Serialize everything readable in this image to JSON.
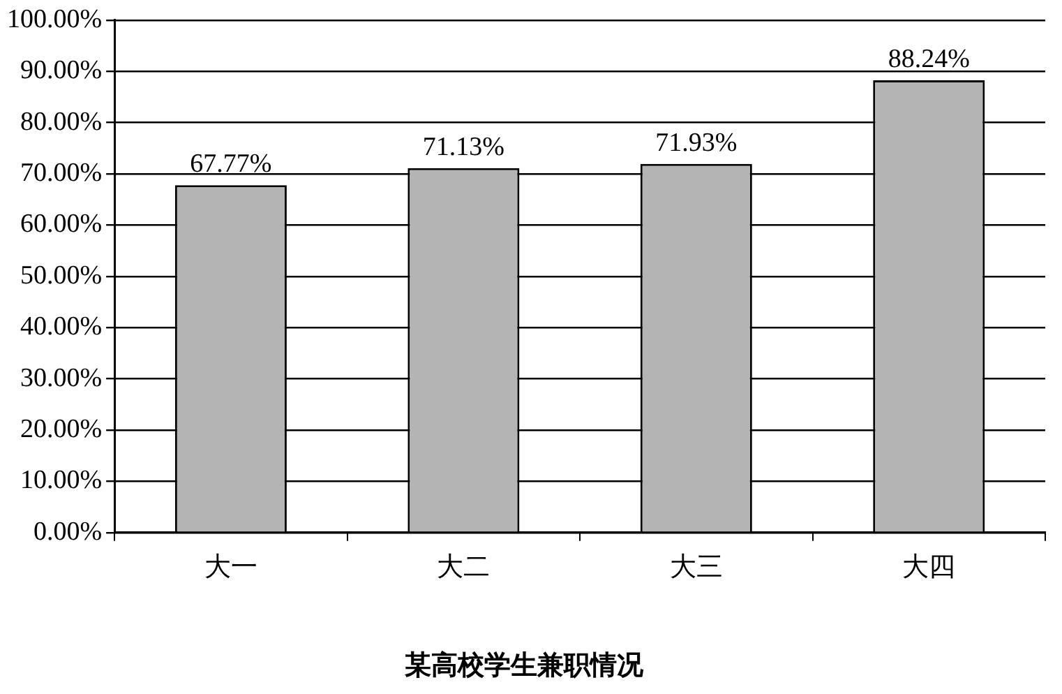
{
  "chart_data": {
    "type": "bar",
    "title": "某高校学生兼职情况",
    "categories": [
      "大一",
      "大二",
      "大三",
      "大四"
    ],
    "values": [
      67.77,
      71.13,
      71.93,
      88.24
    ],
    "value_labels": [
      "67.77%",
      "71.13%",
      "71.93%",
      "88.24%"
    ],
    "color": "#b4b4b4",
    "ylim": [
      0,
      100
    ],
    "yticks": [
      {
        "value": 0,
        "label": "0.00%"
      },
      {
        "value": 10,
        "label": "10.00%"
      },
      {
        "value": 20,
        "label": "20.00%"
      },
      {
        "value": 30,
        "label": "30.00%"
      },
      {
        "value": 40,
        "label": "40.00%"
      },
      {
        "value": 50,
        "label": "50.00%"
      },
      {
        "value": 60,
        "label": "60.00%"
      },
      {
        "value": 70,
        "label": "70.00%"
      },
      {
        "value": 80,
        "label": "80.00%"
      },
      {
        "value": 90,
        "label": "90.00%"
      },
      {
        "value": 100,
        "label": "100.00%"
      }
    ],
    "grid": "y",
    "legend": false
  }
}
